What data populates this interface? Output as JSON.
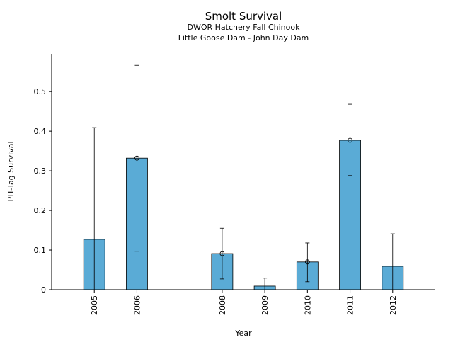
{
  "chart_data": {
    "type": "bar",
    "title": "Smolt Survival",
    "subtitle": [
      "DWOR Hatchery Fall Chinook",
      "Little Goose Dam - John Day Dam"
    ],
    "xlabel": "Year",
    "ylabel": "PIT-Tag Survival",
    "categories": [
      "2005",
      "2006",
      "2008",
      "2009",
      "2010",
      "2011",
      "2012"
    ],
    "category_positions": [
      2005,
      2006,
      2008,
      2009,
      2010,
      2011,
      2012
    ],
    "values": [
      0.127,
      0.332,
      0.091,
      0.009,
      0.07,
      0.377,
      0.059
    ],
    "error_low": [
      0.0,
      0.097,
      0.027,
      0.0,
      0.02,
      0.288,
      0.0
    ],
    "error_high": [
      0.409,
      0.566,
      0.155,
      0.029,
      0.118,
      0.468,
      0.141
    ],
    "point_markers": [
      false,
      true,
      true,
      false,
      true,
      true,
      false
    ],
    "xlim": [
      2004.0,
      2013.0
    ],
    "ylim": [
      0,
      0.595
    ],
    "yticks": [
      0,
      0.1,
      0.2,
      0.3,
      0.4,
      0.5
    ],
    "ytick_labels": [
      "0",
      "0.1",
      "0.2",
      "0.3",
      "0.4",
      "0.5"
    ],
    "grid": false,
    "legend": "none",
    "colors": {
      "bar": "#5aabd6",
      "edge": "#000000"
    }
  }
}
